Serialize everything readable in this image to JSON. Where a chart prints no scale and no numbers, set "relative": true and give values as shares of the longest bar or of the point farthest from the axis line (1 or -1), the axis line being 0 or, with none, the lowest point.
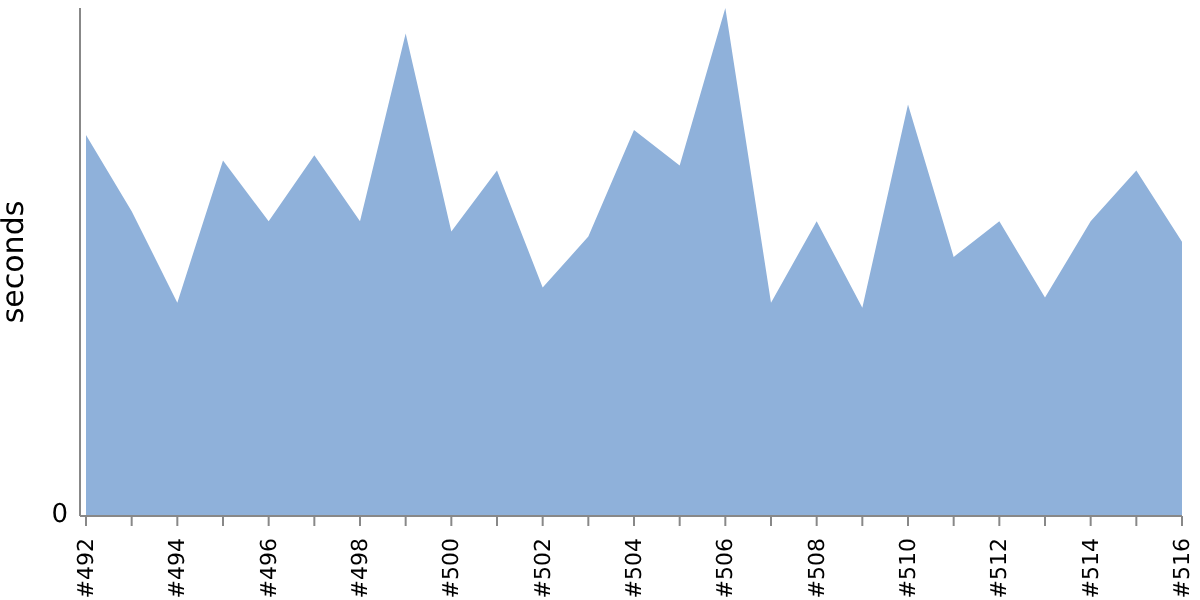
{
  "chart_data": {
    "type": "area",
    "ylabel": "seconds",
    "relative": true,
    "annotations": [
      "0"
    ],
    "color": "#8fb1da",
    "categories": [
      "#492",
      null,
      "#494",
      null,
      "#496",
      null,
      "#498",
      null,
      "#500",
      null,
      "#502",
      null,
      "#504",
      null,
      "#506",
      null,
      "#508",
      null,
      "#510",
      null,
      "#512",
      null,
      "#514",
      null,
      "#516"
    ],
    "values": [
      0.75,
      0.6,
      0.42,
      0.7,
      0.58,
      0.71,
      0.58,
      0.95,
      0.56,
      0.68,
      0.45,
      0.55,
      0.76,
      0.69,
      1,
      0.42,
      0.58,
      0.41,
      0.81,
      0.51,
      0.58,
      0.43,
      0.58,
      0.68,
      0.54
    ]
  }
}
